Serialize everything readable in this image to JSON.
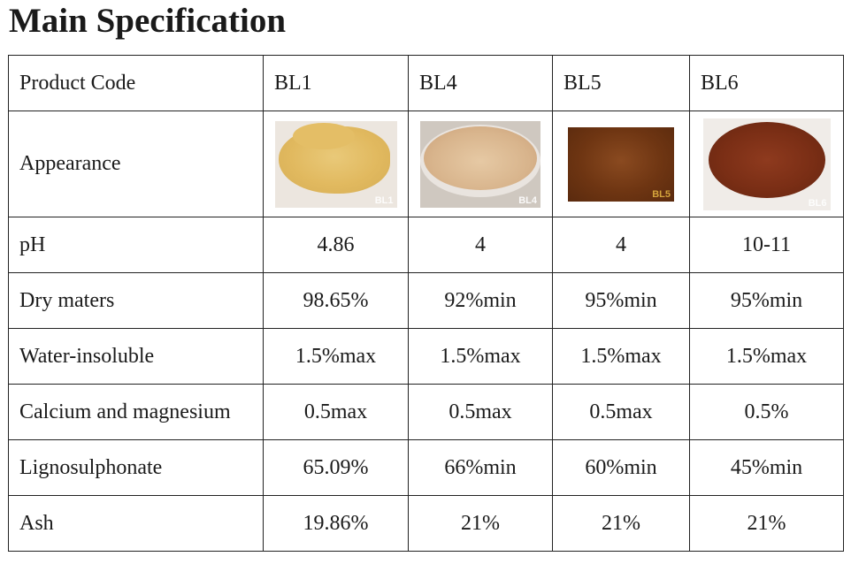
{
  "title": "Main Specification",
  "table": {
    "header": {
      "label": "Product Code",
      "codes": [
        "BL1",
        "BL4",
        "BL5",
        "BL6"
      ]
    },
    "appearance": {
      "label": "Appearance",
      "images": [
        {
          "tag": "BL1",
          "color": "#e1b95f"
        },
        {
          "tag": "BL4",
          "color": "#d8b48c"
        },
        {
          "tag": "BL5",
          "color": "#6e3512"
        },
        {
          "tag": "BL6",
          "color": "#7a2e15"
        }
      ]
    },
    "rows": [
      {
        "label": "pH",
        "values": [
          "4.86",
          "4",
          "4",
          "10-11"
        ]
      },
      {
        "label": "Dry maters",
        "values": [
          "98.65%",
          "92%min",
          "95%min",
          "95%min"
        ]
      },
      {
        "label": "Water-insoluble",
        "values": [
          "1.5%max",
          "1.5%max",
          "1.5%max",
          "1.5%max"
        ]
      },
      {
        "label": "Calcium and magnesium",
        "values": [
          "0.5max",
          "0.5max",
          "0.5max",
          "0.5%"
        ]
      },
      {
        "label": "Lignosulphonate",
        "values": [
          "65.09%",
          "66%min",
          "60%min",
          "45%min"
        ]
      },
      {
        "label": "Ash",
        "values": [
          "19.86%",
          "21%",
          "21%",
          "21%"
        ]
      }
    ]
  }
}
